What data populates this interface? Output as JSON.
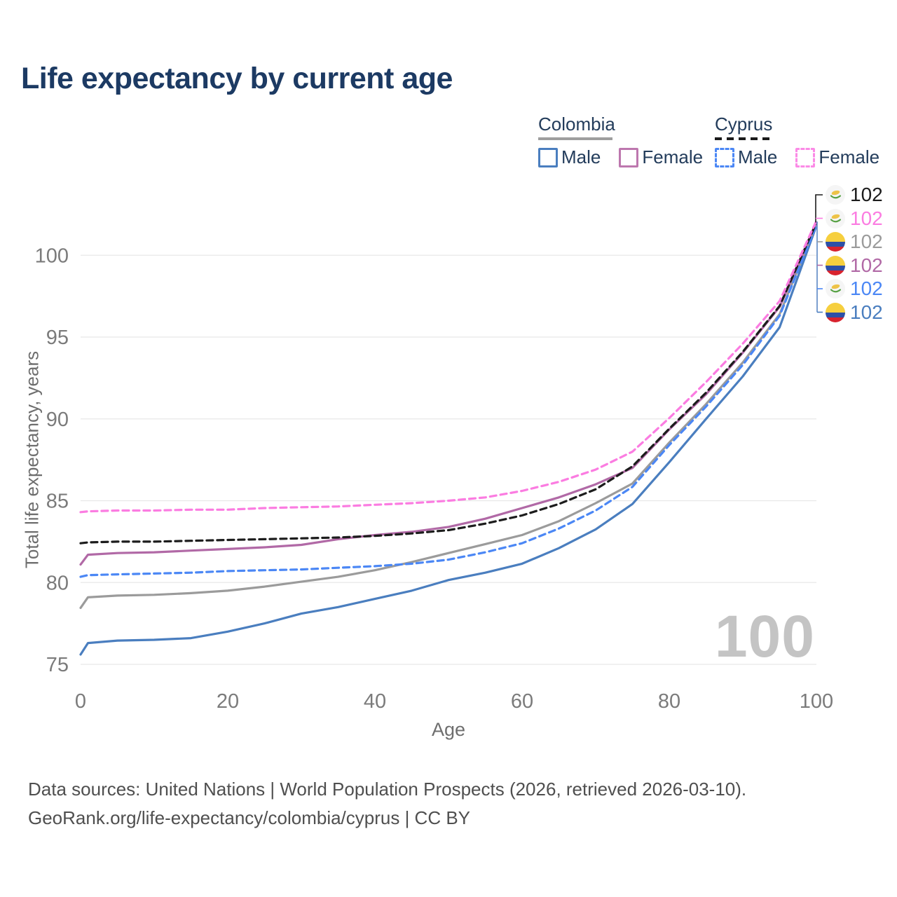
{
  "header": {
    "title": "Life expectancy by current age"
  },
  "legend": {
    "groups": [
      {
        "label": "Colombia",
        "line_style": "solid",
        "underline_color": "#9e9e9e",
        "items": [
          {
            "label": "Male",
            "color": "#4a7ebf",
            "dash": false
          },
          {
            "label": "Female",
            "color": "#bd77ae",
            "dash": false
          }
        ]
      },
      {
        "label": "Cyprus",
        "line_style": "dashed",
        "underline_color": "#1a1a1a",
        "items": [
          {
            "label": "Male",
            "color": "#4b87f5",
            "dash": true
          },
          {
            "label": "Female",
            "color": "#fb8ae6",
            "dash": true
          }
        ]
      }
    ]
  },
  "chart_data": {
    "type": "line",
    "xlabel": "Age",
    "ylabel": "Total life expectancy, years",
    "xlim": [
      0,
      100
    ],
    "ylim": [
      75,
      102.5
    ],
    "xticks": [
      0,
      20,
      40,
      60,
      80,
      100
    ],
    "yticks": [
      75,
      80,
      85,
      90,
      95,
      100
    ],
    "grid": true,
    "legend_position": "top-right",
    "watermark": "100",
    "ages": [
      0,
      1,
      5,
      10,
      15,
      20,
      25,
      30,
      35,
      40,
      45,
      50,
      55,
      60,
      65,
      70,
      75,
      80,
      85,
      90,
      95,
      100
    ],
    "series": [
      {
        "name": "Colombia Male",
        "country": "Colombia",
        "sex": "male",
        "color": "#4a7ebf",
        "dash": false,
        "values": [
          75.6,
          76.3,
          76.45,
          76.5,
          76.6,
          77.0,
          77.5,
          78.1,
          78.5,
          79.0,
          79.5,
          80.15,
          80.6,
          81.15,
          82.1,
          83.25,
          84.8,
          87.35,
          90.0,
          92.6,
          95.6,
          101.8
        ]
      },
      {
        "name": "Colombia Both sexes",
        "country": "Colombia",
        "sex": "all",
        "color": "#9b9b9b",
        "dash": false,
        "values": [
          78.45,
          79.1,
          79.2,
          79.25,
          79.35,
          79.5,
          79.75,
          80.05,
          80.35,
          80.75,
          81.25,
          81.8,
          82.35,
          82.9,
          83.75,
          84.85,
          86.05,
          88.55,
          90.9,
          93.45,
          96.4,
          101.9
        ]
      },
      {
        "name": "Colombia Female",
        "country": "Colombia",
        "sex": "female",
        "color": "#b169a6",
        "dash": false,
        "values": [
          81.1,
          81.7,
          81.8,
          81.85,
          81.95,
          82.05,
          82.15,
          82.3,
          82.65,
          82.9,
          83.1,
          83.4,
          83.9,
          84.55,
          85.2,
          86.0,
          87.0,
          89.35,
          91.5,
          94.05,
          96.85,
          102.0
        ]
      },
      {
        "name": "Cyprus Male",
        "country": "Cyprus",
        "sex": "male",
        "color": "#4b87f5",
        "dash": true,
        "values": [
          80.35,
          80.45,
          80.5,
          80.55,
          80.6,
          80.7,
          80.75,
          80.8,
          80.9,
          81.0,
          81.15,
          81.4,
          81.85,
          82.4,
          83.3,
          84.4,
          85.85,
          88.4,
          90.75,
          93.3,
          96.3,
          101.85
        ]
      },
      {
        "name": "Cyprus Both sexes",
        "country": "Cyprus",
        "sex": "all",
        "color": "#1c1c1c",
        "dash": true,
        "values": [
          82.4,
          82.45,
          82.5,
          82.5,
          82.55,
          82.6,
          82.65,
          82.7,
          82.75,
          82.85,
          83.0,
          83.2,
          83.6,
          84.1,
          84.8,
          85.7,
          87.1,
          89.4,
          91.6,
          94.1,
          96.9,
          102.0
        ]
      },
      {
        "name": "Cyprus Female",
        "country": "Cyprus",
        "sex": "female",
        "color": "#fb7ce1",
        "dash": true,
        "values": [
          84.3,
          84.35,
          84.4,
          84.4,
          84.45,
          84.45,
          84.55,
          84.6,
          84.65,
          84.75,
          84.85,
          85.0,
          85.2,
          85.6,
          86.15,
          86.9,
          88.0,
          90.05,
          92.25,
          94.6,
          97.2,
          102.1
        ]
      }
    ],
    "end_labels": [
      {
        "flag": "cyprus",
        "value": "102",
        "color": "#1c1c1c",
        "series": "Cyprus Both sexes"
      },
      {
        "flag": "cyprus",
        "value": "102",
        "color": "#fb7ce1",
        "series": "Cyprus Female"
      },
      {
        "flag": "colombia",
        "value": "102",
        "color": "#9b9b9b",
        "series": "Colombia Both sexes"
      },
      {
        "flag": "colombia",
        "value": "102",
        "color": "#b169a6",
        "series": "Colombia Female"
      },
      {
        "flag": "cyprus",
        "value": "102",
        "color": "#4b87f5",
        "series": "Cyprus Male"
      },
      {
        "flag": "colombia",
        "value": "102",
        "color": "#4a7ebf",
        "series": "Colombia Male"
      }
    ]
  },
  "footer": {
    "line1": "Data sources: United Nations | World Population Prospects (2026, retrieved 2026-03-10).",
    "line2": "GeoRank.org/life-expectancy/colombia/cyprus | CC BY"
  }
}
